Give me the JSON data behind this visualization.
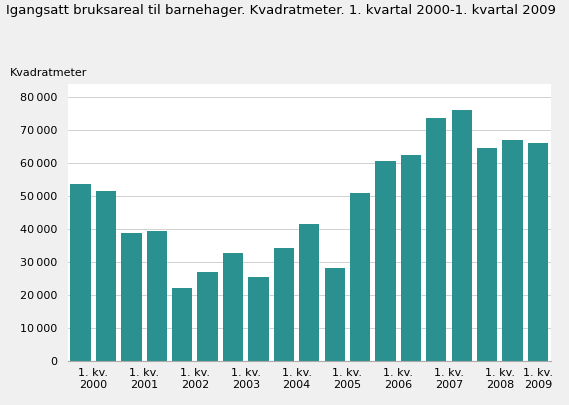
{
  "title": "Igangsatt bruksareal til barnehager. Kvadratmeter. 1. kvartal 2000-1. kvartal 2009",
  "ylabel": "Kvadratmeter",
  "bar_color": "#2a9090",
  "background_color": "#f0f0f0",
  "plot_bg": "#ffffff",
  "grid_color": "#d0d0d0",
  "values": [
    53500,
    51500,
    38800,
    39500,
    22200,
    26800,
    32800,
    25500,
    34200,
    41500,
    28000,
    51000,
    60500,
    62500,
    73500,
    76000,
    64500,
    67000,
    66000
  ],
  "xlabels": [
    "1. kv.\n2000",
    "1. kv.\n2001",
    "1. kv.\n2002",
    "1. kv.\n2003",
    "1. kv.\n2004",
    "1. kv.\n2005",
    "1. kv.\n2006",
    "1. kv.\n2007",
    "1. kv.\n2008",
    "1. kv.\n2009"
  ],
  "yticks": [
    0,
    10000,
    20000,
    30000,
    40000,
    50000,
    60000,
    70000,
    80000
  ],
  "ylim": [
    0,
    84000
  ],
  "title_fontsize": 9.5,
  "ylabel_fontsize": 8,
  "tick_fontsize": 8
}
